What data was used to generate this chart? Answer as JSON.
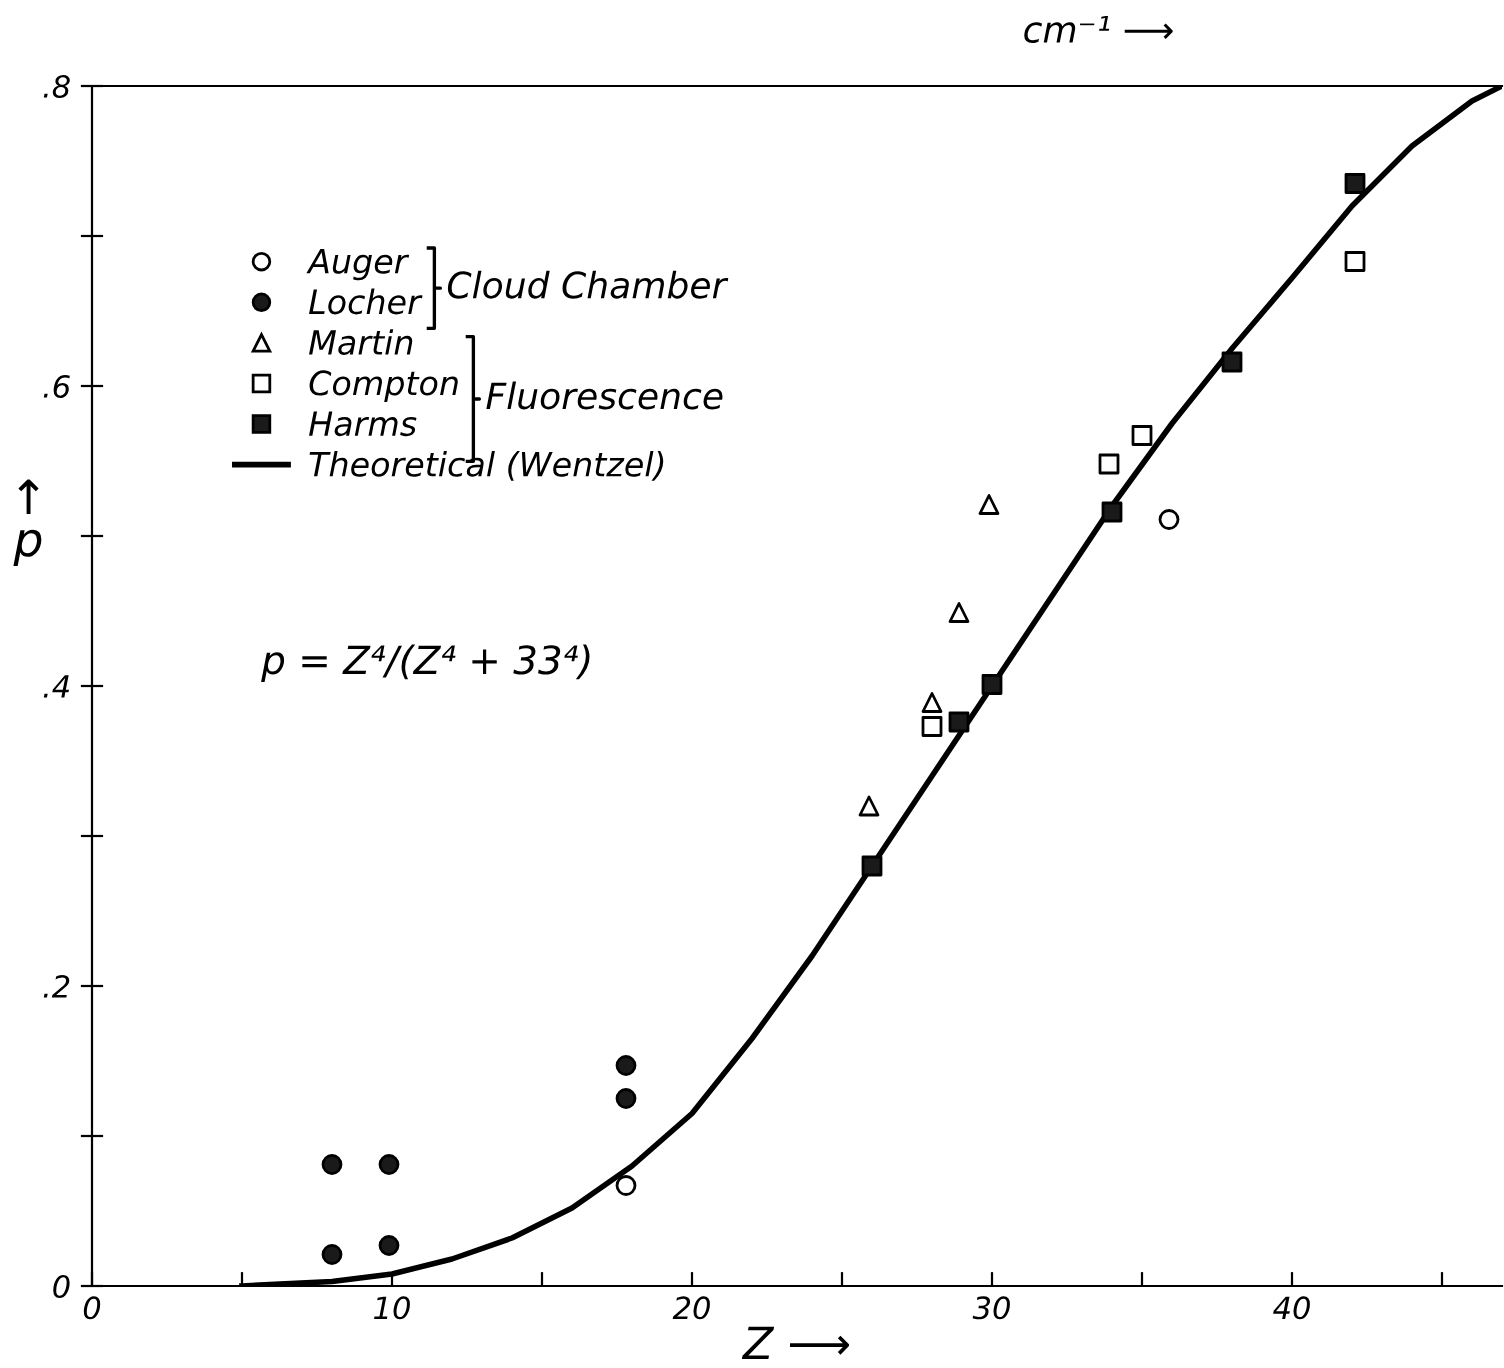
{
  "chart_data": {
    "type": "scatter",
    "xlabel": "Z ⟶",
    "ylabel": "↑\np",
    "xlim": [
      0,
      47
    ],
    "ylim": [
      0,
      0.8
    ],
    "xticks": [
      0,
      {
        "value": 5,
        "label": null
      },
      10,
      {
        "value": 15,
        "label": null
      },
      20,
      {
        "value": 25,
        "label": null
      },
      30,
      {
        "value": 35,
        "label": null
      },
      40,
      {
        "value": 45,
        "label": null
      }
    ],
    "yticks": [
      0,
      {
        "value": 0.1,
        "label": null
      },
      {
        "value": 0.2,
        "label": ".2"
      },
      {
        "value": 0.3,
        "label": null
      },
      {
        "value": 0.4,
        "label": ".4"
      },
      {
        "value": 0.5,
        "label": null
      },
      {
        "value": 0.6,
        "label": ".6"
      },
      {
        "value": 0.7,
        "label": null
      },
      {
        "value": 0.8,
        "label": ".8"
      }
    ],
    "grid": false,
    "legend": "top left",
    "annotations": [
      "cm⁻¹ ⟶",
      "Cloud Chamber",
      "Fluorescence",
      "p = Z⁴/(Z⁴ + 33⁴)"
    ],
    "series": [
      {
        "name": "Auger",
        "marker": "circle",
        "color": "#ffffff",
        "x": [
          35.9,
          17.8
        ],
        "values": [
          0.511,
          0.067
        ]
      },
      {
        "name": "Locher",
        "marker": "circle",
        "color": "#1a1a1a",
        "x": [
          8.0,
          8.0,
          9.9,
          9.9,
          17.8,
          17.8
        ],
        "values": [
          0.081,
          0.021,
          0.081,
          0.027,
          0.147,
          0.125
        ]
      },
      {
        "name": "Martin",
        "marker": "triangle",
        "color": "#ffffff",
        "x": [
          29.9,
          28.9,
          28.0,
          25.9
        ],
        "values": [
          0.521,
          0.449,
          0.389,
          0.32
        ]
      },
      {
        "name": "Compton",
        "marker": "square",
        "color": "#ffffff",
        "x": [
          42.1,
          35.0,
          33.9,
          28.0
        ],
        "values": [
          0.683,
          0.567,
          0.548,
          0.373
        ]
      },
      {
        "name": "Harms",
        "marker": "square",
        "color": "#1a1a1a",
        "x": [
          42.1,
          38.0,
          34.0,
          30.0,
          28.9,
          26.0
        ],
        "values": [
          0.735,
          0.616,
          0.516,
          0.401,
          0.376,
          0.28
        ]
      },
      {
        "name": "Theoretical (Wentzel)",
        "type": "line",
        "line_style": "solid",
        "marker": "none",
        "color": "#000000",
        "x": [
          5,
          8,
          10,
          12,
          14,
          16,
          18,
          20,
          22,
          24,
          26,
          28,
          30,
          32,
          34,
          36,
          38,
          40,
          42,
          44,
          46,
          47
        ],
        "values": [
          0.0,
          0.003,
          0.008,
          0.018,
          0.032,
          0.052,
          0.08,
          0.115,
          0.165,
          0.22,
          0.28,
          0.34,
          0.4,
          0.46,
          0.52,
          0.575,
          0.625,
          0.672,
          0.72,
          0.76,
          0.79,
          0.8
        ]
      }
    ]
  }
}
